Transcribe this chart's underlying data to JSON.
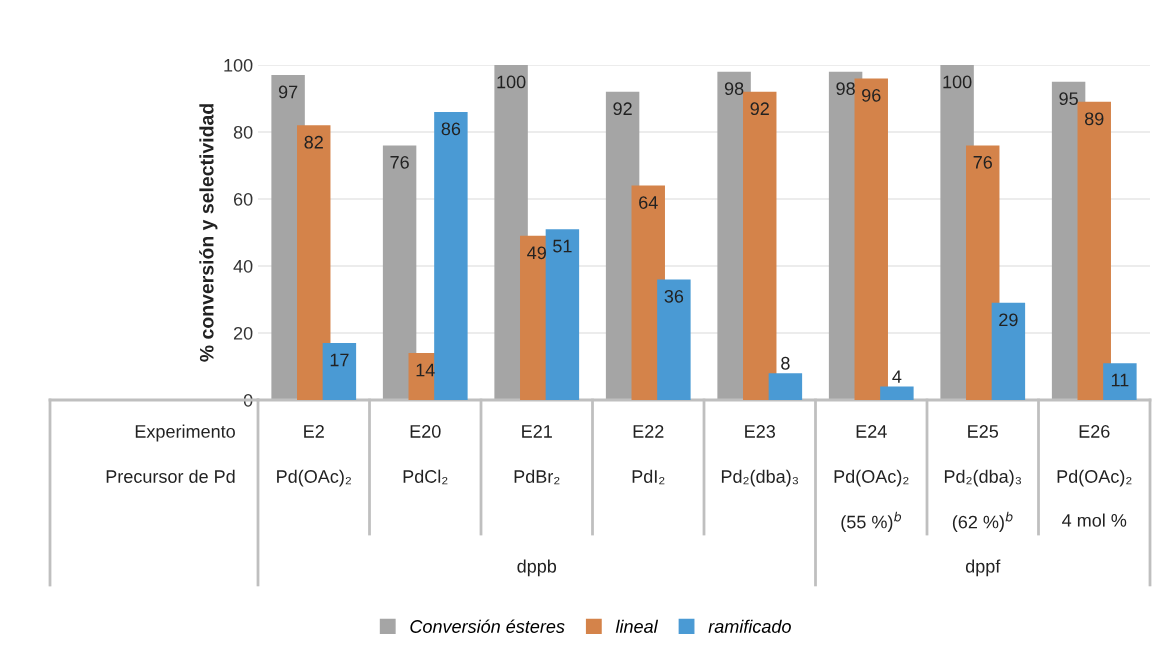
{
  "chart_data": {
    "type": "bar",
    "ylabel": "% conversión y selectividad",
    "categories": [
      "E2\nPd(OAc)₂",
      "E20\nPdCl₂",
      "E21\nPdBr₂",
      "E22\nPdI₂",
      "E23\nPd₂(dba)₃",
      "E24\nPd(OAc)₂\n(55 %)$^{b}$",
      "E25\nPd₂(dba)₃\n(62 %)$^{b}$",
      "E26\nPd(OAc)₂\n4 mol %"
    ],
    "series": [
      {
        "name": "Conversión ésteres",
        "color": "#a5a5a5",
        "values": [
          97,
          76,
          100,
          92,
          98,
          98,
          100,
          95
        ]
      },
      {
        "name": "lineal",
        "color": "#d4834a",
        "values": [
          82,
          14,
          49,
          64,
          92,
          96,
          76,
          89
        ]
      },
      {
        "name": "ramificado",
        "color": "#4a9ad4",
        "values": [
          17,
          86,
          51,
          36,
          8,
          4,
          29,
          11
        ]
      }
    ],
    "ylim": [
      0,
      100
    ],
    "yticks": [
      0,
      20,
      40,
      60,
      80,
      100
    ],
    "grid": "y",
    "legend": "bottom",
    "data_labels": true,
    "annotations": [
      "Experimento",
      "Precursor de Pd",
      "dppb",
      "dppf"
    ]
  }
}
